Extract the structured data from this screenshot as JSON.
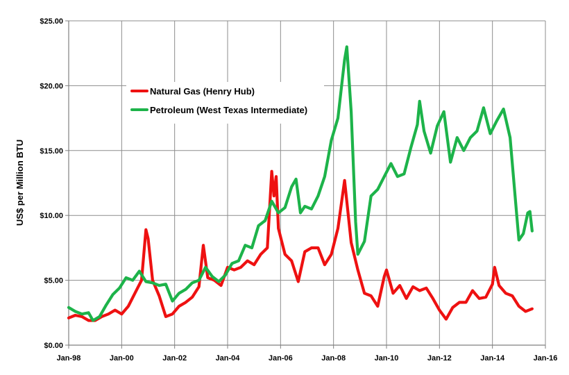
{
  "chart_data": {
    "type": "line",
    "title": "",
    "xlabel": "",
    "ylabel": "US$ per Million BTU",
    "x_ticks": [
      "Jan-98",
      "Jan-00",
      "Jan-02",
      "Jan-04",
      "Jan-06",
      "Jan-08",
      "Jan-10",
      "Jan-12",
      "Jan-14",
      "Jan-16"
    ],
    "y_ticks": [
      "$0.00",
      "$5.00",
      "$10.00",
      "$15.00",
      "$20.00",
      "$25.00"
    ],
    "xlim": [
      "1998-01",
      "2016-01"
    ],
    "ylim": [
      0,
      25
    ],
    "grid": true,
    "legend_position": "upper-left",
    "series": [
      {
        "name": "Natural Gas (Henry Hub)",
        "color": "#ee1111",
        "points": [
          [
            "1998-01",
            2.1
          ],
          [
            "1998-04",
            2.3
          ],
          [
            "1998-07",
            2.2
          ],
          [
            "1998-10",
            1.9
          ],
          [
            "1999-01",
            1.9
          ],
          [
            "1999-04",
            2.2
          ],
          [
            "1999-07",
            2.4
          ],
          [
            "1999-10",
            2.7
          ],
          [
            "2000-01",
            2.4
          ],
          [
            "2000-04",
            3.0
          ],
          [
            "2000-07",
            4.0
          ],
          [
            "2000-10",
            5.0
          ],
          [
            "2000-12",
            8.9
          ],
          [
            "2001-01",
            8.2
          ],
          [
            "2001-03",
            5.0
          ],
          [
            "2001-06",
            3.8
          ],
          [
            "2001-09",
            2.2
          ],
          [
            "2001-12",
            2.4
          ],
          [
            "2002-03",
            3.0
          ],
          [
            "2002-06",
            3.3
          ],
          [
            "2002-09",
            3.7
          ],
          [
            "2002-12",
            4.5
          ],
          [
            "2003-02",
            7.7
          ],
          [
            "2003-04",
            5.2
          ],
          [
            "2003-07",
            5.0
          ],
          [
            "2003-10",
            4.6
          ],
          [
            "2004-01",
            6.0
          ],
          [
            "2004-04",
            5.8
          ],
          [
            "2004-07",
            6.0
          ],
          [
            "2004-10",
            6.5
          ],
          [
            "2005-01",
            6.2
          ],
          [
            "2005-04",
            7.0
          ],
          [
            "2005-07",
            7.5
          ],
          [
            "2005-09",
            13.4
          ],
          [
            "2005-10",
            11.5
          ],
          [
            "2005-11",
            13.0
          ],
          [
            "2005-12",
            9.0
          ],
          [
            "2006-03",
            7.0
          ],
          [
            "2006-06",
            6.5
          ],
          [
            "2006-09",
            4.9
          ],
          [
            "2006-12",
            7.2
          ],
          [
            "2007-03",
            7.5
          ],
          [
            "2007-06",
            7.5
          ],
          [
            "2007-09",
            6.2
          ],
          [
            "2007-12",
            7.0
          ],
          [
            "2008-03",
            9.0
          ],
          [
            "2008-06",
            12.7
          ],
          [
            "2008-09",
            7.9
          ],
          [
            "2008-12",
            5.8
          ],
          [
            "2009-03",
            4.0
          ],
          [
            "2009-06",
            3.8
          ],
          [
            "2009-09",
            3.0
          ],
          [
            "2009-12",
            5.3
          ],
          [
            "2010-01",
            5.8
          ],
          [
            "2010-04",
            4.0
          ],
          [
            "2010-07",
            4.6
          ],
          [
            "2010-10",
            3.6
          ],
          [
            "2011-01",
            4.5
          ],
          [
            "2011-04",
            4.2
          ],
          [
            "2011-07",
            4.4
          ],
          [
            "2011-10",
            3.6
          ],
          [
            "2012-01",
            2.7
          ],
          [
            "2012-04",
            2.0
          ],
          [
            "2012-07",
            2.9
          ],
          [
            "2012-10",
            3.3
          ],
          [
            "2013-01",
            3.3
          ],
          [
            "2013-04",
            4.2
          ],
          [
            "2013-07",
            3.6
          ],
          [
            "2013-10",
            3.7
          ],
          [
            "2014-01",
            4.7
          ],
          [
            "2014-02",
            6.0
          ],
          [
            "2014-04",
            4.6
          ],
          [
            "2014-07",
            4.0
          ],
          [
            "2014-10",
            3.8
          ],
          [
            "2015-01",
            3.0
          ],
          [
            "2015-04",
            2.6
          ],
          [
            "2015-07",
            2.8
          ]
        ]
      },
      {
        "name": "Petroleum (West Texas Intermediate)",
        "color": "#1db34a",
        "points": [
          [
            "1998-01",
            2.9
          ],
          [
            "1998-04",
            2.6
          ],
          [
            "1998-07",
            2.4
          ],
          [
            "1998-10",
            2.5
          ],
          [
            "1998-12",
            1.9
          ],
          [
            "1999-03",
            2.2
          ],
          [
            "1999-06",
            3.1
          ],
          [
            "1999-09",
            3.9
          ],
          [
            "1999-12",
            4.4
          ],
          [
            "2000-03",
            5.2
          ],
          [
            "2000-06",
            5.0
          ],
          [
            "2000-09",
            5.7
          ],
          [
            "2000-12",
            4.9
          ],
          [
            "2001-03",
            4.8
          ],
          [
            "2001-06",
            4.6
          ],
          [
            "2001-09",
            4.7
          ],
          [
            "2001-12",
            3.4
          ],
          [
            "2002-03",
            4.0
          ],
          [
            "2002-06",
            4.3
          ],
          [
            "2002-09",
            4.8
          ],
          [
            "2002-12",
            5.0
          ],
          [
            "2003-03",
            6.0
          ],
          [
            "2003-06",
            5.3
          ],
          [
            "2003-09",
            4.9
          ],
          [
            "2003-12",
            5.4
          ],
          [
            "2004-03",
            6.3
          ],
          [
            "2004-06",
            6.5
          ],
          [
            "2004-09",
            7.7
          ],
          [
            "2004-12",
            7.5
          ],
          [
            "2005-03",
            9.2
          ],
          [
            "2005-06",
            9.6
          ],
          [
            "2005-09",
            11.1
          ],
          [
            "2005-12",
            10.2
          ],
          [
            "2006-03",
            10.6
          ],
          [
            "2006-06",
            12.2
          ],
          [
            "2006-08",
            12.8
          ],
          [
            "2006-10",
            10.2
          ],
          [
            "2006-12",
            10.7
          ],
          [
            "2007-03",
            10.5
          ],
          [
            "2007-06",
            11.5
          ],
          [
            "2007-09",
            13.0
          ],
          [
            "2007-12",
            15.8
          ],
          [
            "2008-03",
            17.5
          ],
          [
            "2008-06",
            22.0
          ],
          [
            "2008-07",
            23.0
          ],
          [
            "2008-09",
            18.0
          ],
          [
            "2008-11",
            9.5
          ],
          [
            "2008-12",
            7.0
          ],
          [
            "2009-03",
            8.0
          ],
          [
            "2009-06",
            11.5
          ],
          [
            "2009-09",
            12.0
          ],
          [
            "2009-12",
            13.0
          ],
          [
            "2010-03",
            14.0
          ],
          [
            "2010-06",
            13.0
          ],
          [
            "2010-09",
            13.2
          ],
          [
            "2010-12",
            15.2
          ],
          [
            "2011-03",
            17.0
          ],
          [
            "2011-04",
            18.8
          ],
          [
            "2011-06",
            16.5
          ],
          [
            "2011-09",
            14.8
          ],
          [
            "2011-12",
            16.9
          ],
          [
            "2012-03",
            18.0
          ],
          [
            "2012-06",
            14.1
          ],
          [
            "2012-09",
            16.0
          ],
          [
            "2012-12",
            15.0
          ],
          [
            "2013-03",
            16.0
          ],
          [
            "2013-06",
            16.5
          ],
          [
            "2013-09",
            18.3
          ],
          [
            "2013-12",
            16.3
          ],
          [
            "2014-03",
            17.3
          ],
          [
            "2014-06",
            18.2
          ],
          [
            "2014-09",
            16.0
          ],
          [
            "2014-12",
            10.0
          ],
          [
            "2015-01",
            8.1
          ],
          [
            "2015-03",
            8.6
          ],
          [
            "2015-05",
            10.2
          ],
          [
            "2015-06",
            10.3
          ],
          [
            "2015-07",
            8.8
          ]
        ]
      }
    ]
  }
}
